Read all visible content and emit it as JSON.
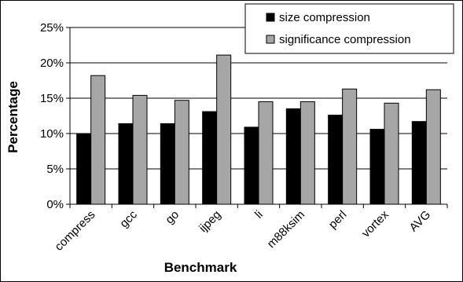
{
  "chart_data": {
    "type": "bar",
    "title": "",
    "xlabel": "Benchmark",
    "ylabel": "Percentage",
    "categories": [
      "compress",
      "gcc",
      "go",
      "ijpeg",
      "li",
      "m88ksim",
      "perl",
      "vortex",
      "AVG"
    ],
    "series": [
      {
        "name": "size compression",
        "color": "#000000",
        "values": [
          10.0,
          11.4,
          11.4,
          13.1,
          10.9,
          13.5,
          12.6,
          10.6,
          11.7
        ]
      },
      {
        "name": "significance compression",
        "color": "#a6a6a6",
        "values": [
          18.2,
          15.4,
          14.7,
          21.1,
          14.5,
          14.5,
          16.3,
          14.3,
          16.2
        ]
      }
    ],
    "ylim": [
      0,
      25
    ],
    "yticks": [
      "0%",
      "5%",
      "10%",
      "15%",
      "20%",
      "25%"
    ],
    "grid": true,
    "legend_position": "top-right"
  }
}
